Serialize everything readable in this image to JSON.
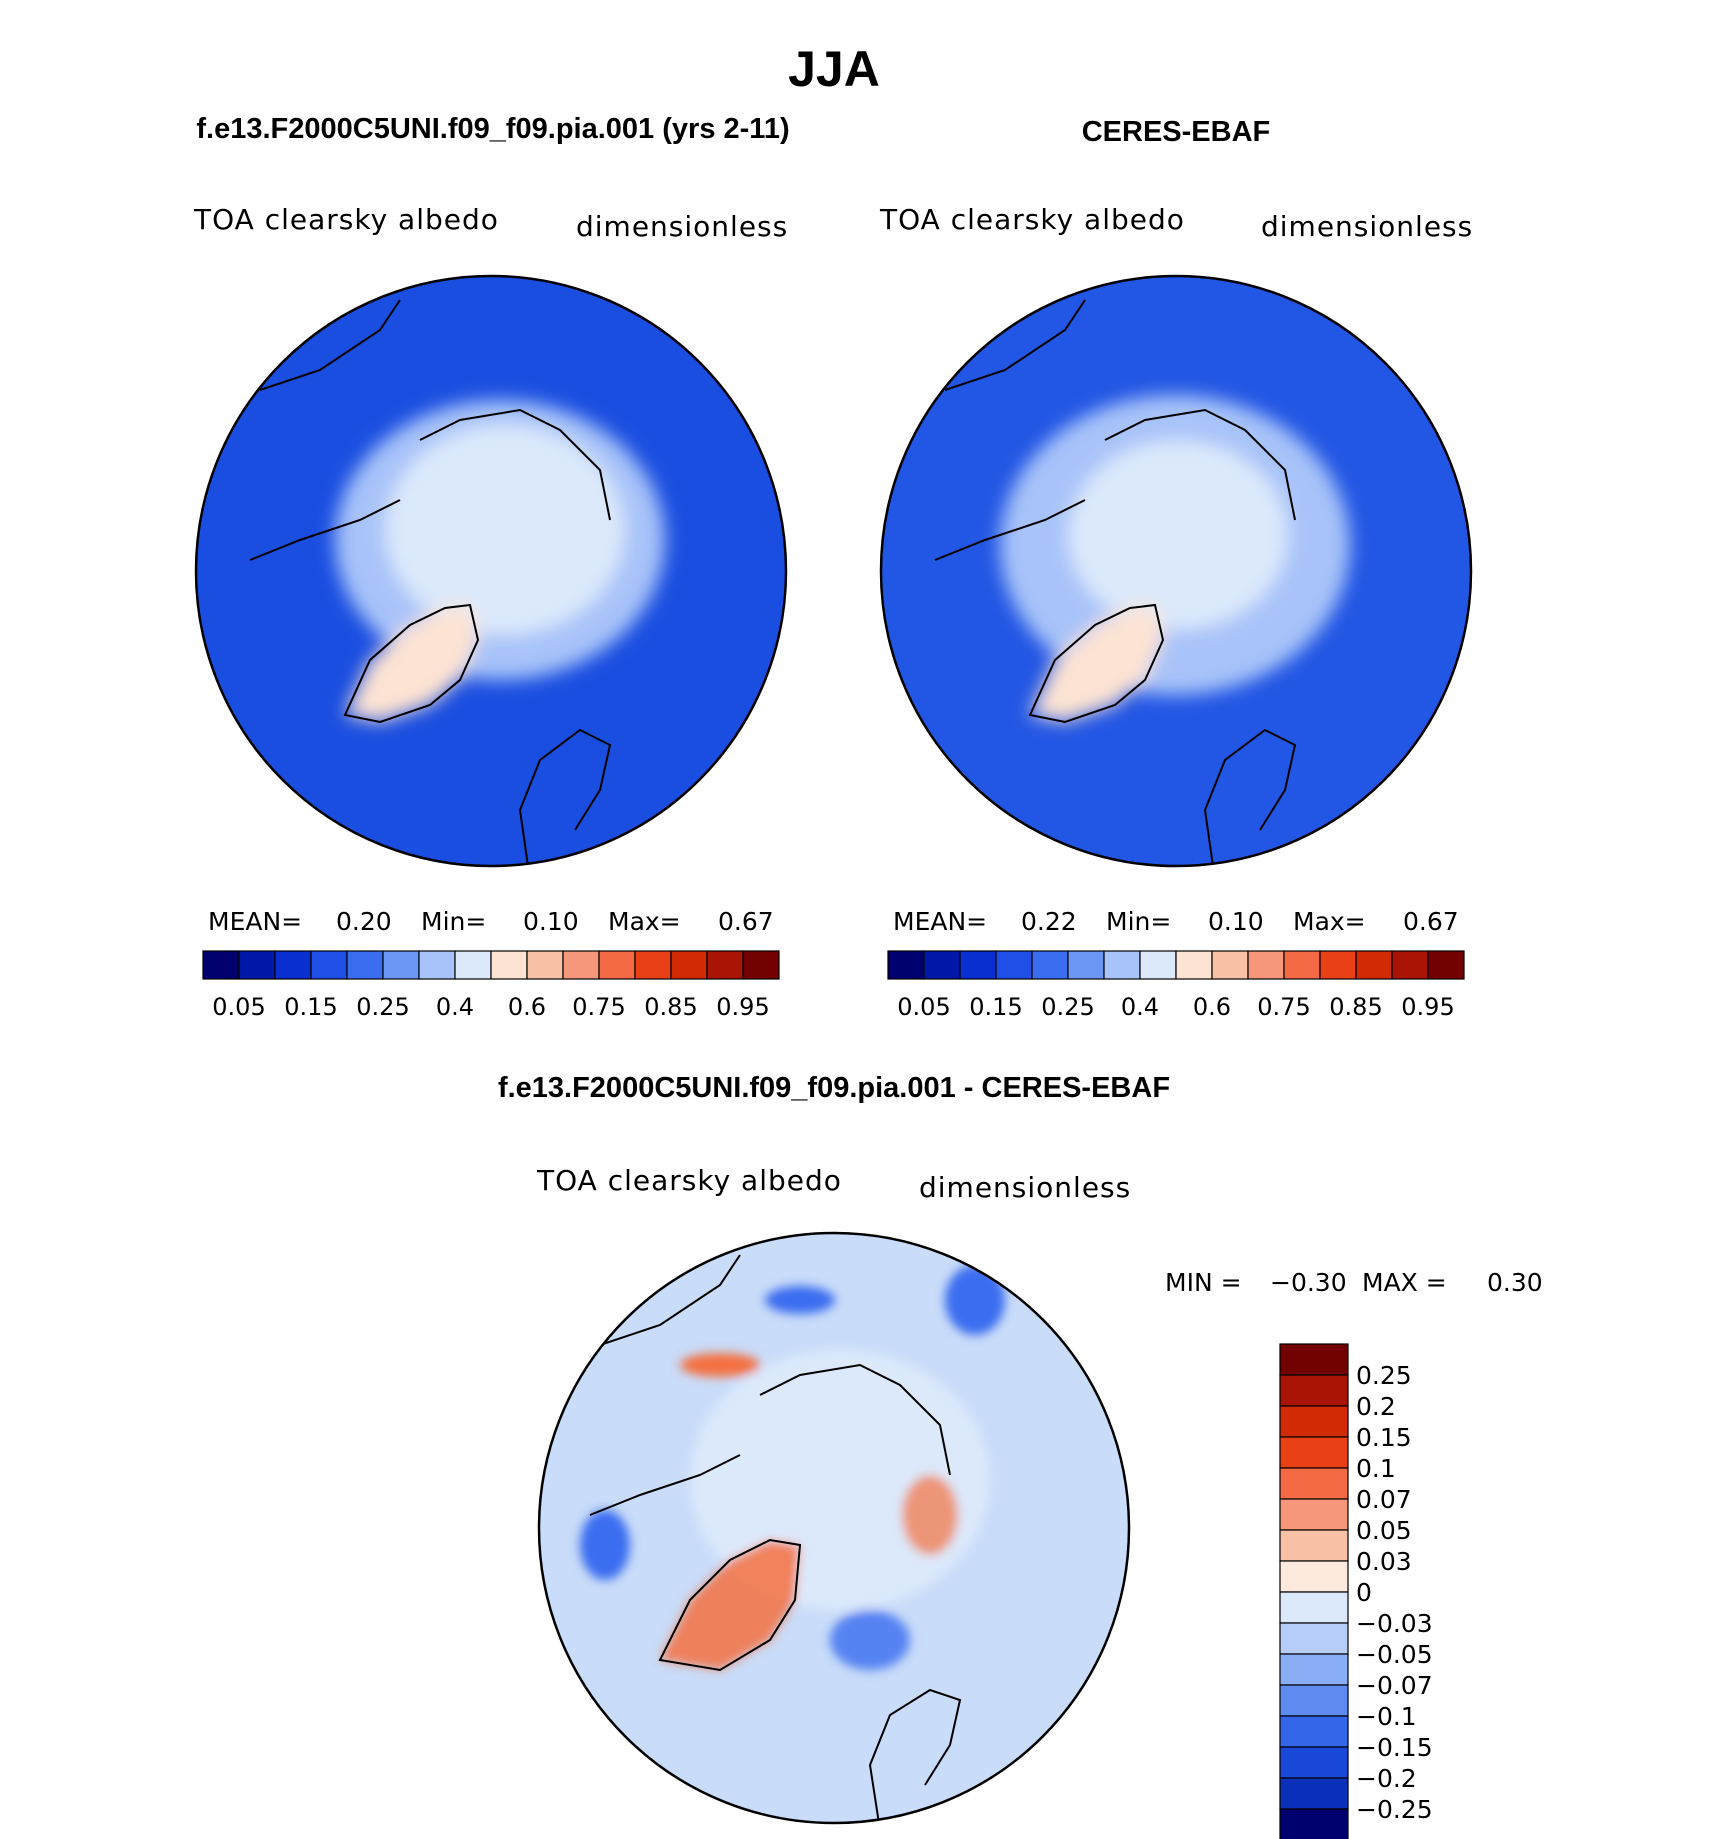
{
  "figure": {
    "main_title": "JJA",
    "panel1_title": "f.e13.F2000C5UNI.f09_f09.pia.001 (yrs 2-11)",
    "panel2_title": "CERES-EBAF",
    "diff_title": "f.e13.F2000C5UNI.f09_f09.pia.001 - CERES-EBAF"
  },
  "chart_data": [
    {
      "type": "heatmap",
      "projection": "north polar stereographic",
      "variable": "TOA clearsky albedo",
      "units": "dimensionless",
      "stats": {
        "mean_label": "MEAN=",
        "mean": "0.20",
        "min_label": "Min=",
        "min": "0.10",
        "max_label": "Max=",
        "max": "0.67"
      },
      "colorbar": {
        "orientation": "horizontal",
        "levels": [
          0.05,
          0.1,
          0.15,
          0.2,
          0.25,
          0.3,
          0.4,
          0.5,
          0.6,
          0.7,
          0.75,
          0.8,
          0.85,
          0.9,
          0.95
        ],
        "tick_labels": [
          "0.05",
          "0.15",
          "0.25",
          "0.4",
          "0.6",
          "0.75",
          "0.85",
          "0.95"
        ],
        "colors": [
          "#00006e",
          "#0018a8",
          "#0a2fd0",
          "#1f4fe6",
          "#3a6df0",
          "#6c96f4",
          "#a7c3f9",
          "#dce9fb",
          "#fde3d3",
          "#f9c2a6",
          "#f6967a",
          "#f46a45",
          "#ea4016",
          "#d12a05",
          "#a91405",
          "#730000"
        ]
      },
      "regions": {
        "ocean": "#1a4ee0",
        "sea_ice": "#dce9fb",
        "ice_edge": "#a7c3f9",
        "greenland": "#fde3d3"
      }
    },
    {
      "type": "heatmap",
      "projection": "north polar stereographic",
      "variable": "TOA clearsky albedo",
      "units": "dimensionless",
      "stats": {
        "mean_label": "MEAN=",
        "mean": "0.22",
        "min_label": "Min=",
        "min": "0.10",
        "max_label": "Max=",
        "max": "0.67"
      },
      "colorbar": {
        "orientation": "horizontal",
        "levels": [
          0.05,
          0.1,
          0.15,
          0.2,
          0.25,
          0.3,
          0.4,
          0.5,
          0.6,
          0.7,
          0.75,
          0.8,
          0.85,
          0.9,
          0.95
        ],
        "tick_labels": [
          "0.05",
          "0.15",
          "0.25",
          "0.4",
          "0.6",
          "0.75",
          "0.85",
          "0.95"
        ],
        "colors": [
          "#00006e",
          "#0018a8",
          "#0a2fd0",
          "#1f4fe6",
          "#3a6df0",
          "#6c96f4",
          "#a7c3f9",
          "#dce9fb",
          "#fde3d3",
          "#f9c2a6",
          "#f6967a",
          "#f46a45",
          "#ea4016",
          "#d12a05",
          "#a91405",
          "#730000"
        ]
      },
      "regions": {
        "ocean": "#2256e4",
        "sea_ice": "#dce9fb",
        "ice_edge": "#a7c3f9",
        "greenland": "#fde3d3"
      }
    },
    {
      "type": "heatmap",
      "projection": "north polar stereographic",
      "variable": "TOA clearsky albedo",
      "units": "dimensionless",
      "stats": {
        "min_label": "MIN =",
        "min": "−0.30",
        "max_label": "MAX =",
        "max": "0.30"
      },
      "colorbar": {
        "orientation": "vertical",
        "levels": [
          -0.25,
          -0.2,
          -0.15,
          -0.1,
          -0.07,
          -0.05,
          -0.03,
          0,
          0.03,
          0.05,
          0.07,
          0.1,
          0.15,
          0.2,
          0.25
        ],
        "tick_labels": [
          "0.25",
          "0.2",
          "0.15",
          "0.1",
          "0.07",
          "0.05",
          "0.03",
          "0",
          "−0.03",
          "−0.05",
          "−0.07",
          "−0.1",
          "−0.15",
          "−0.2",
          "−0.25"
        ],
        "colors": [
          "#730000",
          "#a91405",
          "#d12a05",
          "#ea4016",
          "#f46a45",
          "#f6967a",
          "#f9c2a6",
          "#fde9dd",
          "#dce9fb",
          "#b5cdf8",
          "#8aaef5",
          "#5f8af0",
          "#3366e8",
          "#1a48d8",
          "#0a2fb8",
          "#00006e"
        ]
      },
      "regions": {
        "ocean": "#c9dcf9",
        "sea_ice": "#dce9fb",
        "positive": "#f4703f",
        "negative": "#3a6df0"
      }
    }
  ]
}
